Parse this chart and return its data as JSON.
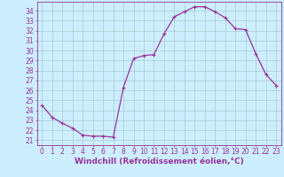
{
  "x": [
    0,
    1,
    2,
    3,
    4,
    5,
    6,
    7,
    8,
    9,
    10,
    11,
    12,
    13,
    14,
    15,
    16,
    17,
    18,
    19,
    20,
    21,
    22,
    23
  ],
  "y": [
    24.5,
    23.3,
    22.7,
    22.2,
    21.5,
    21.4,
    21.4,
    21.3,
    26.3,
    29.2,
    29.5,
    29.6,
    31.7,
    33.4,
    33.9,
    34.4,
    34.4,
    33.9,
    33.3,
    32.2,
    32.1,
    29.7,
    27.6,
    26.5
  ],
  "line_color": "#993399",
  "marker": "+",
  "marker_size": 3,
  "marker_linewidth": 0.8,
  "bg_color": "#cceeff",
  "grid_color": "#aacccc",
  "xlabel": "Windchill (Refroidissement éolien,°C)",
  "xlabel_fontsize": 6.5,
  "ylabel_ticks": [
    21,
    22,
    23,
    24,
    25,
    26,
    27,
    28,
    29,
    30,
    31,
    32,
    33,
    34
  ],
  "ylim": [
    20.5,
    34.9
  ],
  "xlim": [
    -0.5,
    23.5
  ],
  "xtick_labels": [
    "0",
    "1",
    "2",
    "3",
    "4",
    "5",
    "6",
    "7",
    "8",
    "9",
    "10",
    "11",
    "12",
    "13",
    "14",
    "15",
    "16",
    "17",
    "18",
    "19",
    "20",
    "21",
    "22",
    "23"
  ],
  "tick_fontsize": 5.5,
  "tick_color": "#993399",
  "spine_color": "#993399",
  "line_width": 0.9
}
